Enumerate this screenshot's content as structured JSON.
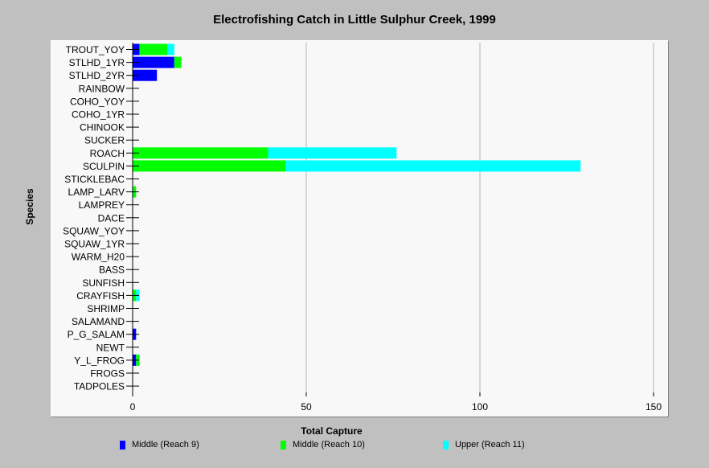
{
  "chart_data": {
    "type": "bar",
    "orientation": "horizontal",
    "stacked": true,
    "title": "Electrofishing Catch in Little Sulphur Creek, 1999",
    "xlabel": "Total Capture",
    "ylabel": "Species",
    "xlim": [
      0,
      150
    ],
    "xticks": [
      0,
      50,
      100,
      150
    ],
    "grid": "vertical",
    "legend": "bottom",
    "categories": [
      "TROUT_YOY",
      "STLHD_1YR",
      "STLHD_2YR",
      "RAINBOW",
      "COHO_YOY",
      "COHO_1YR",
      "CHINOOK",
      "SUCKER",
      "ROACH",
      "SCULPIN",
      "STICKLEBAC",
      "LAMP_LARV",
      "LAMPREY",
      "DACE",
      "SQUAW_YOY",
      "SQUAW_1YR",
      "WARM_H20",
      "BASS",
      "SUNFISH",
      "CRAYFISH",
      "SHRIMP",
      "SALAMAND",
      "P_G_SALAM",
      "NEWT",
      "Y_L_FROG",
      "FROGS",
      "TADPOLES"
    ],
    "series": [
      {
        "name": "Middle (Reach 9)",
        "color": "#0000ff",
        "values": [
          2,
          12,
          7,
          0,
          0,
          0,
          0,
          0,
          0,
          0,
          0,
          0,
          0,
          0,
          0,
          0,
          0,
          0,
          0,
          0,
          0,
          0,
          1,
          0,
          1,
          0,
          0
        ]
      },
      {
        "name": "Middle (Reach 10)",
        "color": "#00ff00",
        "values": [
          8,
          2,
          0,
          0,
          0,
          0,
          0,
          0,
          39,
          44,
          0,
          1,
          0,
          0,
          0,
          0,
          0,
          0,
          0,
          1,
          0,
          0,
          0,
          0,
          1,
          0,
          0
        ]
      },
      {
        "name": "Upper (Reach 11)",
        "color": "#00ffff",
        "values": [
          2,
          0,
          0,
          0,
          0,
          0,
          0,
          0,
          37,
          85,
          0,
          0,
          0,
          0,
          0,
          0,
          0,
          0,
          0,
          1,
          0,
          0,
          0,
          0,
          0,
          0,
          0
        ]
      }
    ]
  }
}
